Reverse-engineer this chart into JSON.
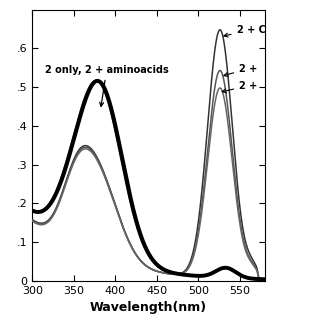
{
  "xlabel": "Wavelength(nm)",
  "ylabel": "",
  "xlim": [
    300,
    580
  ],
  "ylim": [
    0,
    0.7
  ],
  "yticks": [
    0.0,
    0.1,
    0.2,
    0.3,
    0.4,
    0.5,
    0.6
  ],
  "ytick_labels": [
    "0",
    ".1",
    ".2",
    ".3",
    ".4",
    ".5",
    ".6"
  ],
  "xticks": [
    300,
    350,
    400,
    450,
    500,
    550
  ],
  "xtick_labels": [
    "300",
    "350",
    "400",
    "450",
    "500",
    "550"
  ],
  "figsize": [
    3.23,
    3.23
  ],
  "dpi": 100
}
